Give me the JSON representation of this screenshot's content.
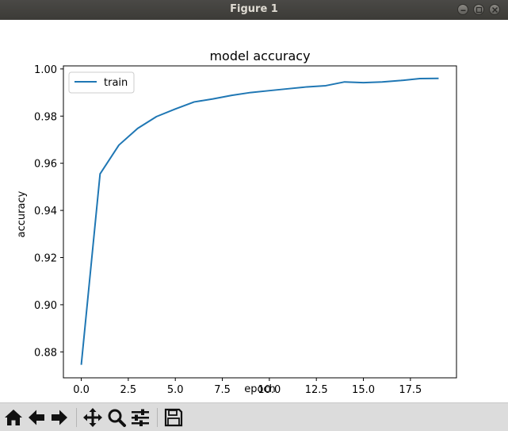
{
  "window": {
    "title": "Figure 1",
    "buttons": [
      "minimize",
      "maximize",
      "close"
    ]
  },
  "toolbar": {
    "buttons": [
      {
        "name": "home-button",
        "icon": "home-icon"
      },
      {
        "name": "back-button",
        "icon": "arrow-left-icon"
      },
      {
        "name": "forward-button",
        "icon": "arrow-right-icon"
      },
      {
        "name": "pan-button",
        "icon": "move-icon"
      },
      {
        "name": "zoom-button",
        "icon": "magnifier-icon"
      },
      {
        "name": "subplots-button",
        "icon": "sliders-icon"
      },
      {
        "name": "save-button",
        "icon": "floppy-disk-icon"
      }
    ]
  },
  "chart_data": {
    "type": "line",
    "title": "model accuracy",
    "xlabel": "epoch",
    "ylabel": "accuracy",
    "xlim": [
      -0.95,
      19.95
    ],
    "ylim": [
      0.869,
      1.0013
    ],
    "xticks": [
      0.0,
      2.5,
      5.0,
      7.5,
      10.0,
      12.5,
      15.0,
      17.5
    ],
    "xtick_labels": [
      "0.0",
      "2.5",
      "5.0",
      "7.5",
      "10.0",
      "12.5",
      "15.0",
      "17.5"
    ],
    "yticks": [
      0.88,
      0.9,
      0.92,
      0.94,
      0.96,
      0.98,
      1.0
    ],
    "ytick_labels": [
      "0.88",
      "0.90",
      "0.92",
      "0.94",
      "0.96",
      "0.98",
      "1.00"
    ],
    "grid": false,
    "legend_position": "upper-left",
    "series": [
      {
        "name": "train",
        "color": "#1f77b4",
        "x": [
          0,
          1,
          2,
          3,
          4,
          5,
          6,
          7,
          8,
          9,
          10,
          11,
          12,
          13,
          14,
          15,
          16,
          17,
          18,
          19
        ],
        "values": [
          0.8745,
          0.9555,
          0.9677,
          0.9748,
          0.9798,
          0.983,
          0.986,
          0.9873,
          0.9888,
          0.99,
          0.9908,
          0.9916,
          0.9924,
          0.9929,
          0.9945,
          0.9942,
          0.9945,
          0.9951,
          0.9959,
          0.996
        ]
      }
    ]
  }
}
